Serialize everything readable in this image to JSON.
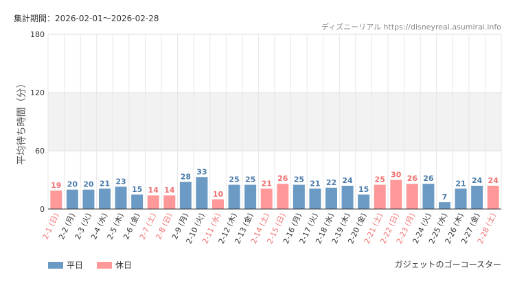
{
  "header": {
    "period": "集計期間：2026-02-01〜2026-02-28",
    "source": "ディズニーリアル https://disneyreal.asumirai.info"
  },
  "footer": {
    "attraction": "ガジェットのゴーコースター"
  },
  "colors": {
    "weekday": "#6b9ac4",
    "weekend": "#ff9999",
    "weekday_text": "#4a7bab",
    "weekend_text": "#f07070",
    "band": "#f2f2f2"
  },
  "chart_data": {
    "type": "bar",
    "ylabel": "平均待ち時間（分）",
    "ylim": [
      0,
      180
    ],
    "yticks": [
      0,
      60,
      120,
      180
    ],
    "shaded_band": [
      60,
      120
    ],
    "legend": [
      "平日",
      "休日"
    ],
    "legend_position": "bottom-left",
    "categories": [
      "2-1 (日)",
      "2-2 (月)",
      "2-3 (火)",
      "2-4 (水)",
      "2-5 (木)",
      "2-6 (金)",
      "2-7 (土)",
      "2-8 (日)",
      "2-9 (月)",
      "2-10 (火)",
      "2-11 (水)",
      "2-12 (木)",
      "2-13 (金)",
      "2-14 (土)",
      "2-15 (日)",
      "2-16 (月)",
      "2-17 (火)",
      "2-18 (水)",
      "2-19 (木)",
      "2-20 (金)",
      "2-21 (土)",
      "2-22 (日)",
      "2-23 (月)",
      "2-24 (火)",
      "2-25 (水)",
      "2-26 (木)",
      "2-27 (金)",
      "2-28 (土)"
    ],
    "values": [
      19,
      20,
      20,
      21,
      23,
      15,
      14,
      14,
      28,
      33,
      10,
      25,
      25,
      21,
      26,
      25,
      21,
      22,
      24,
      15,
      25,
      30,
      26,
      26,
      7,
      21,
      24,
      24
    ],
    "day_type": [
      "休日",
      "平日",
      "平日",
      "平日",
      "平日",
      "平日",
      "休日",
      "休日",
      "平日",
      "平日",
      "休日",
      "平日",
      "平日",
      "休日",
      "休日",
      "平日",
      "平日",
      "平日",
      "平日",
      "平日",
      "休日",
      "休日",
      "休日",
      "平日",
      "平日",
      "平日",
      "平日",
      "休日"
    ]
  }
}
